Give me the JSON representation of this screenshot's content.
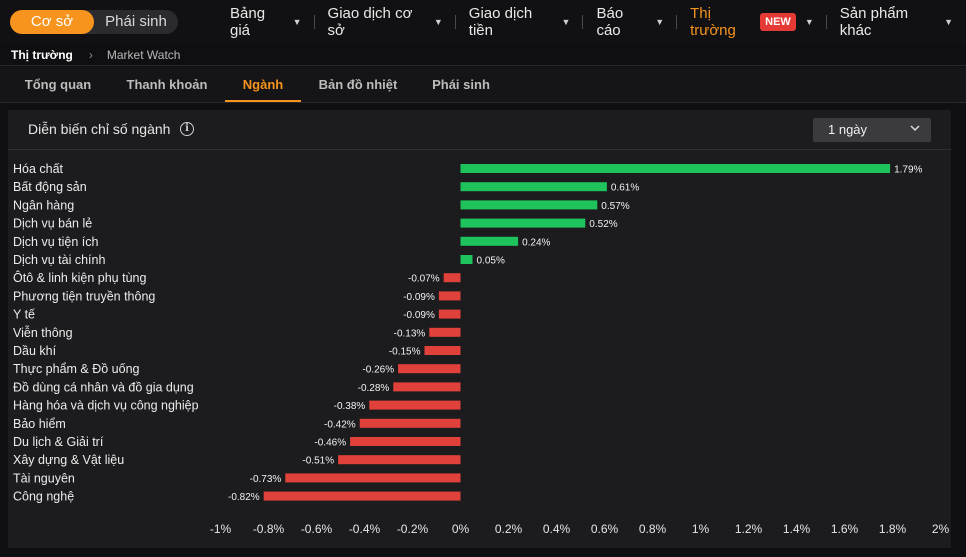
{
  "nav": {
    "segment": [
      "Cơ sở",
      "Phái sinh"
    ],
    "menu": [
      {
        "label": "Bảng giá",
        "caret": true
      },
      {
        "label": "Giao dịch cơ sở",
        "caret": true
      },
      {
        "label": "Giao dịch tiền",
        "caret": true
      },
      {
        "label": "Báo cáo",
        "caret": true
      },
      {
        "label": "Thị trường",
        "caret": true,
        "badge": "NEW",
        "highlight": true
      },
      {
        "label": "Sản phẩm khác",
        "caret": true
      }
    ]
  },
  "breadcrumb": {
    "root": "Thị trường",
    "current": "Market Watch"
  },
  "tabs": [
    "Tổng quan",
    "Thanh khoản",
    "Ngành",
    "Bản đồ nhiệt",
    "Phái sinh"
  ],
  "active_tab": "Ngành",
  "panel": {
    "title": "Diễn biến chỉ số ngành",
    "period": "1 ngày"
  },
  "colors": {
    "accent": "#f7941d",
    "positive": "#1ec35c",
    "negative": "#e0413b",
    "badge": "#e53935"
  },
  "chart_data": {
    "type": "bar",
    "orientation": "horizontal",
    "categories": [
      "Hóa chất",
      "Bất động sản",
      "Ngân hàng",
      "Dịch vụ bán lẻ",
      "Dịch vụ tiện ích",
      "Dịch vụ tài chính",
      "Ôtô & linh kiện phụ tùng",
      "Phương tiện truyền thông",
      "Y tế",
      "Viễn thông",
      "Dầu khí",
      "Thực phẩm & Đồ uống",
      "Đồ dùng cá nhân và đồ gia dụng",
      "Hàng hóa và dịch vụ công nghiệp",
      "Bảo hiểm",
      "Du lịch & Giải trí",
      "Xây dựng & Vật liệu",
      "Tài nguyên",
      "Công nghệ"
    ],
    "values": [
      1.79,
      0.61,
      0.57,
      0.52,
      0.24,
      0.05,
      -0.07,
      -0.09,
      -0.09,
      -0.13,
      -0.15,
      -0.26,
      -0.28,
      -0.38,
      -0.42,
      -0.46,
      -0.51,
      -0.73,
      -0.82
    ],
    "value_labels": [
      "1.79%",
      "0.61%",
      "0.57%",
      "0.52%",
      "0.24%",
      "0.05%",
      "-0.07%",
      "-0.09%",
      "-0.09%",
      "-0.13%",
      "-0.15%",
      "-0.26%",
      "-0.28%",
      "-0.38%",
      "-0.42%",
      "-0.46%",
      "-0.51%",
      "-0.73%",
      "-0.82%"
    ],
    "xticks": [
      -1,
      -0.8,
      -0.6,
      -0.4,
      -0.2,
      0,
      0.2,
      0.4,
      0.6,
      0.8,
      1,
      1.2,
      1.4,
      1.6,
      1.8,
      2
    ],
    "xtick_labels": [
      "-1%",
      "-0.8%",
      "-0.6%",
      "-0.4%",
      "-0.2%",
      "0%",
      "0.2%",
      "0.4%",
      "0.6%",
      "0.8%",
      "1%",
      "1.2%",
      "1.4%",
      "1.6%",
      "1.8%",
      "2%"
    ],
    "xlim": [
      -1,
      2
    ],
    "grid": false,
    "legend": "none"
  }
}
